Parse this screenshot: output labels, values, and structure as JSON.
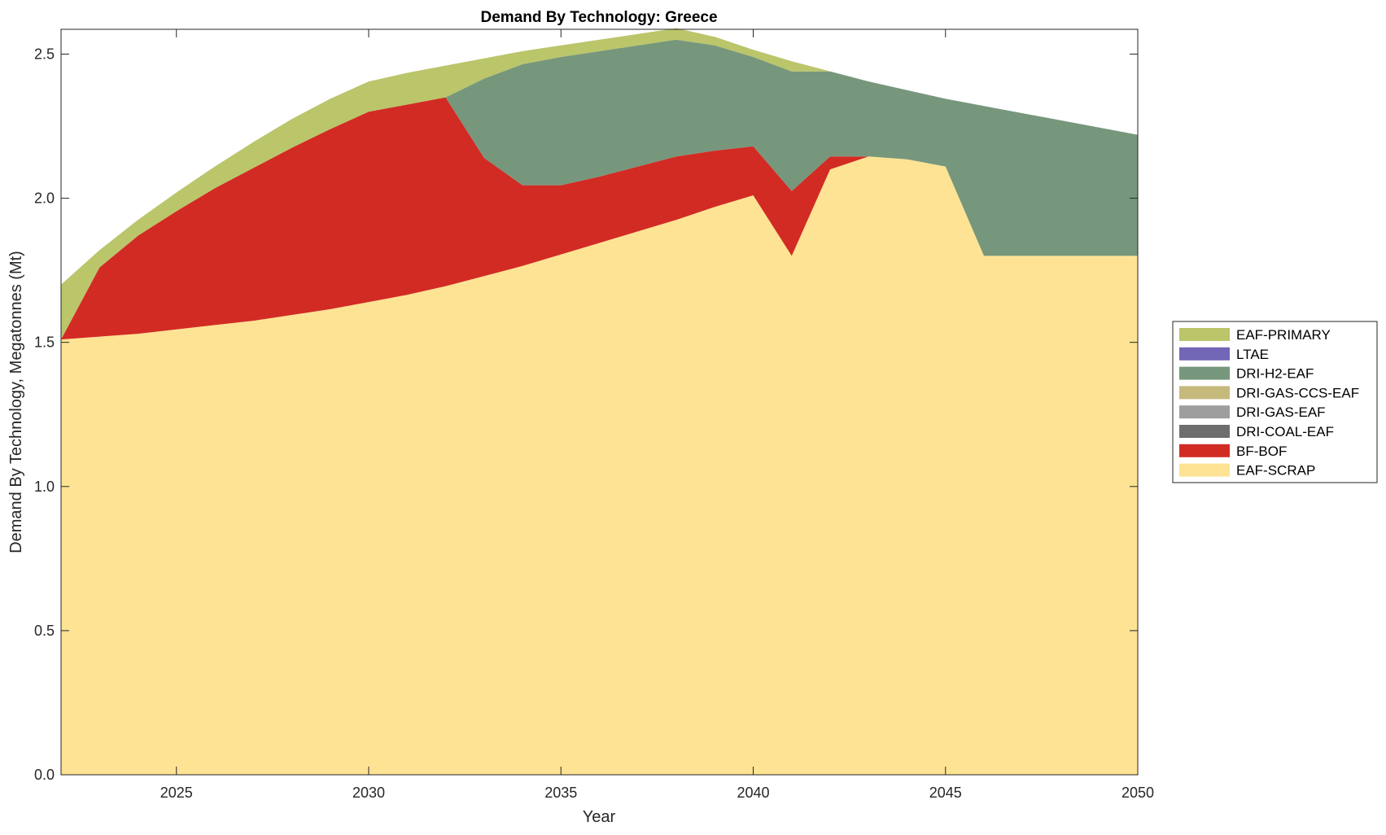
{
  "chart_data": {
    "type": "area",
    "stacked": true,
    "title": "Demand By Technology: Greece",
    "xlabel": "Year",
    "ylabel": "Demand By Technology, Megatonnes (Mt)",
    "xlim": [
      2022,
      2050
    ],
    "ylim": [
      0,
      2.586
    ],
    "xticks": [
      2025,
      2030,
      2035,
      2040,
      2045,
      2050
    ],
    "yticks": [
      "0.0",
      "0.5",
      "1.0",
      "1.5",
      "2.0",
      "2.5"
    ],
    "legend_placement": "right",
    "x": [
      2022,
      2023,
      2024,
      2025,
      2026,
      2027,
      2028,
      2029,
      2030,
      2031,
      2032,
      2033,
      2034,
      2035,
      2036,
      2037,
      2038,
      2039,
      2040,
      2041,
      2042,
      2043,
      2044,
      2045,
      2046,
      2047,
      2048,
      2049,
      2050
    ],
    "series": [
      {
        "name": "EAF-SCRAP",
        "color": "#fde393",
        "values": [
          1.51,
          1.52,
          1.53,
          1.545,
          1.56,
          1.575,
          1.595,
          1.615,
          1.64,
          1.665,
          1.695,
          1.73,
          1.765,
          1.805,
          1.845,
          1.885,
          1.925,
          1.97,
          2.01,
          1.8,
          2.1,
          2.145,
          2.135,
          2.11,
          1.8,
          1.8,
          1.8,
          1.8,
          1.8
        ]
      },
      {
        "name": "BF-BOF",
        "color": "#d22b24",
        "values": [
          0,
          0.24,
          0.34,
          0.41,
          0.475,
          0.53,
          0.58,
          0.625,
          0.66,
          0.66,
          0.655,
          0.41,
          0.28,
          0.24,
          0.23,
          0.225,
          0.22,
          0.195,
          0.17,
          0.225,
          0.045,
          0,
          0,
          0,
          0,
          0,
          0,
          0,
          0
        ]
      },
      {
        "name": "DRI-COAL-EAF",
        "color": "#6e6e6e",
        "values": [
          0,
          0,
          0,
          0,
          0,
          0,
          0,
          0,
          0,
          0,
          0,
          0,
          0,
          0,
          0,
          0,
          0,
          0,
          0,
          0,
          0,
          0,
          0,
          0,
          0,
          0,
          0,
          0,
          0
        ]
      },
      {
        "name": "DRI-GAS-EAF",
        "color": "#9e9e9e",
        "values": [
          0,
          0,
          0,
          0,
          0,
          0,
          0,
          0,
          0,
          0,
          0,
          0,
          0,
          0,
          0,
          0,
          0,
          0,
          0,
          0,
          0,
          0,
          0,
          0,
          0,
          0,
          0,
          0,
          0
        ]
      },
      {
        "name": "DRI-GAS-CCS-EAF",
        "color": "#c5b97c",
        "values": [
          0,
          0,
          0,
          0,
          0,
          0,
          0,
          0,
          0,
          0,
          0,
          0,
          0,
          0,
          0,
          0,
          0,
          0,
          0,
          0,
          0,
          0,
          0,
          0,
          0,
          0,
          0,
          0,
          0
        ]
      },
      {
        "name": "DRI-H2-EAF",
        "color": "#76977c",
        "values": [
          0,
          0,
          0,
          0,
          0,
          0,
          0,
          0,
          0,
          0,
          0,
          0.275,
          0.42,
          0.445,
          0.435,
          0.42,
          0.405,
          0.365,
          0.31,
          0.415,
          0.295,
          0.26,
          0.24,
          0.235,
          0.52,
          0.495,
          0.47,
          0.445,
          0.42
        ]
      },
      {
        "name": "LTAE",
        "color": "#7266b7",
        "values": [
          0,
          0,
          0,
          0,
          0,
          0,
          0,
          0,
          0,
          0,
          0,
          0,
          0,
          0,
          0,
          0,
          0,
          0,
          0,
          0,
          0,
          0,
          0,
          0,
          0,
          0,
          0,
          0,
          0
        ]
      },
      {
        "name": "EAF-PRIMARY",
        "color": "#bbc56a",
        "values": [
          0.19,
          0.06,
          0.055,
          0.065,
          0.075,
          0.09,
          0.1,
          0.105,
          0.105,
          0.11,
          0.11,
          0.07,
          0.045,
          0.04,
          0.04,
          0.04,
          0.04,
          0.03,
          0.025,
          0.035,
          0,
          0,
          0,
          0,
          0,
          0,
          0,
          0,
          0
        ]
      }
    ],
    "legend_order": [
      "EAF-PRIMARY",
      "LTAE",
      "DRI-H2-EAF",
      "DRI-GAS-CCS-EAF",
      "DRI-GAS-EAF",
      "DRI-COAL-EAF",
      "BF-BOF",
      "EAF-SCRAP"
    ]
  }
}
